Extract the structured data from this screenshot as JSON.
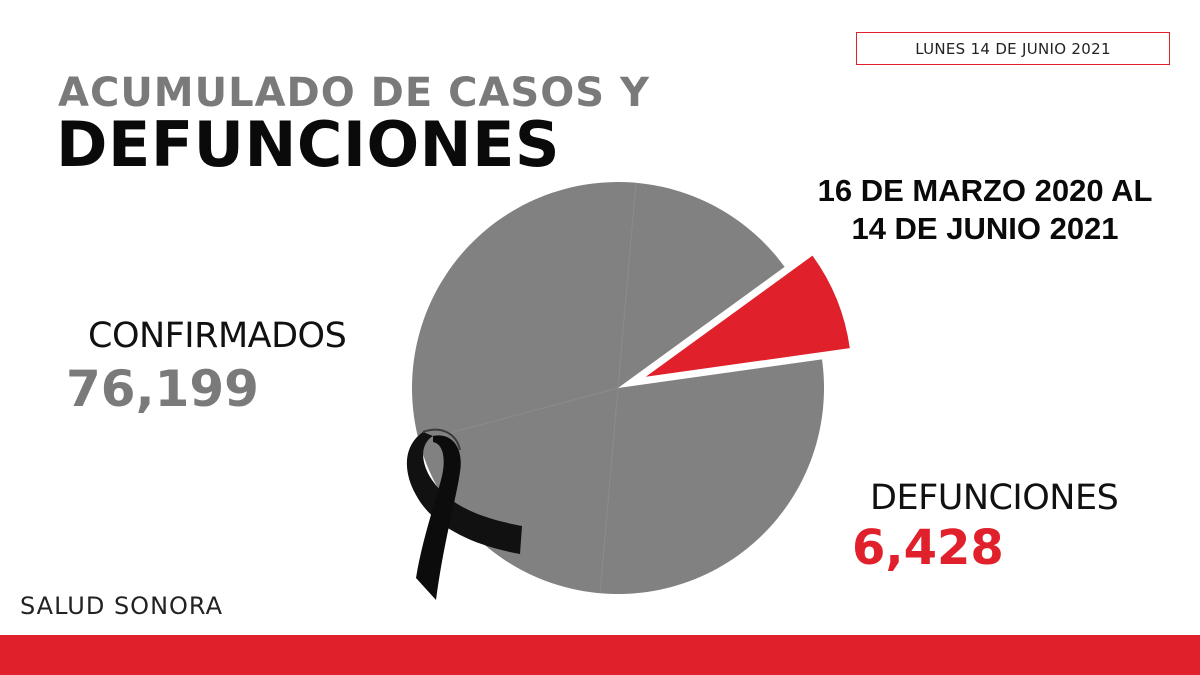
{
  "header": {
    "date": "LUNES 14 DE JUNIO 2021",
    "title_line1": "ACUMULADO DE CASOS Y",
    "title_line2": "DEFUNCIONES"
  },
  "period": {
    "line1": "16 DE MARZO 2020 AL",
    "line2": "14 DE JUNIO 2021"
  },
  "source": "SALUD SONORA",
  "chart_data": {
    "type": "pie",
    "title": "ACUMULADO DE CASOS Y DEFUNCIONES",
    "slices": [
      {
        "label": "CONFIRMADOS",
        "value": 76199,
        "display": "76,199",
        "color": "#818181"
      },
      {
        "label": "DEFUNCIONES",
        "value": 6428,
        "display": "6,428",
        "color": "#e0202a",
        "exploded": true
      }
    ],
    "legend": "none",
    "annotations": [
      "black mourning ribbon over lower-left of pie"
    ]
  },
  "colors": {
    "accent": "#e0202a",
    "gray": "#818181",
    "dark": "#0a0a0a"
  }
}
